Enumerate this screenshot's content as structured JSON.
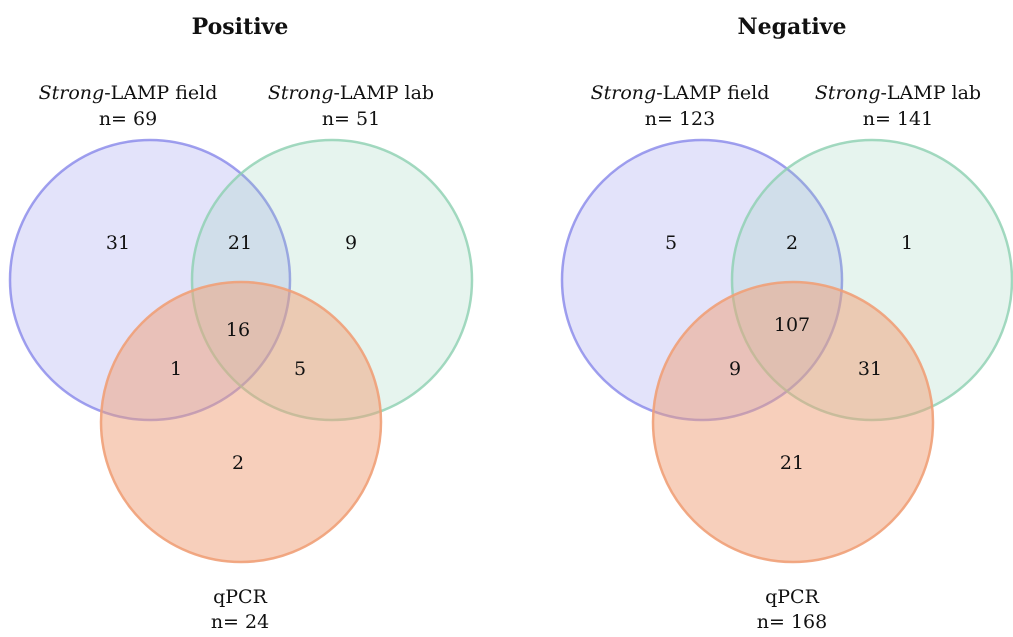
{
  "colors": {
    "field": "#8080e8",
    "lab": "#8ccfb0",
    "qpcr": "#f0a078"
  },
  "panels": [
    {
      "title": "Positive",
      "field": {
        "name_italic": "Strong",
        "name_rest": "-LAMP field",
        "n": "n= 69"
      },
      "lab": {
        "name_italic": "Strong",
        "name_rest": "-LAMP lab",
        "n": "n= 51"
      },
      "qpcr": {
        "name": "qPCR",
        "n": "n= 24"
      },
      "regions": {
        "field_only": "31",
        "field_lab": "21",
        "lab_only": "9",
        "all_three": "16",
        "field_qpcr": "1",
        "lab_qpcr": "5",
        "qpcr_only": "2"
      }
    },
    {
      "title": "Negative",
      "field": {
        "name_italic": "Strong",
        "name_rest": "-LAMP field",
        "n": "n= 123"
      },
      "lab": {
        "name_italic": "Strong",
        "name_rest": "-LAMP lab",
        "n": "n= 141"
      },
      "qpcr": {
        "name": "qPCR",
        "n": "n= 168"
      },
      "regions": {
        "field_only": "5",
        "field_lab": "2",
        "lab_only": "1",
        "all_three": "107",
        "field_qpcr": "9",
        "lab_qpcr": "31",
        "qpcr_only": "21"
      }
    }
  ]
}
